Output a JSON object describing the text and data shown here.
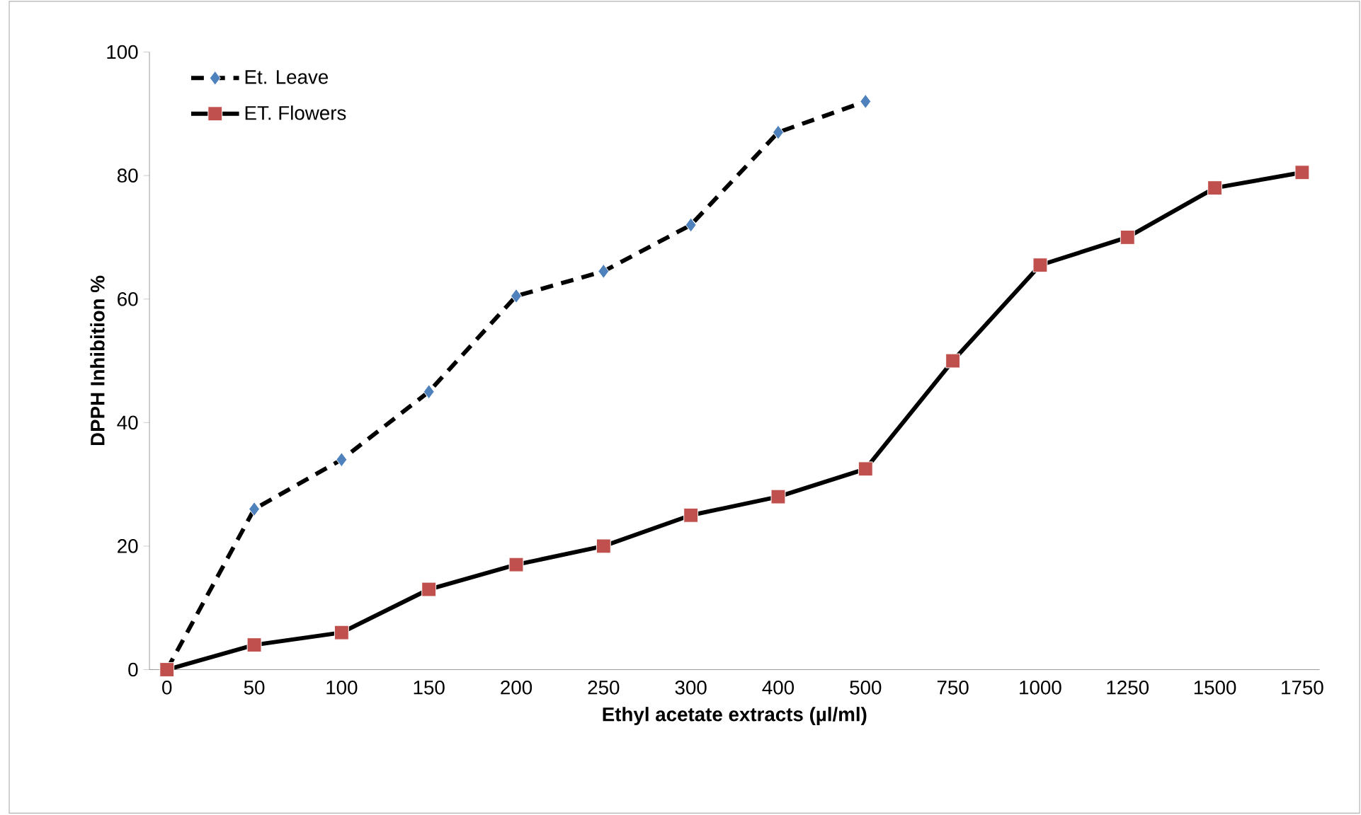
{
  "chart_data": {
    "type": "line",
    "xlabel": "Ethyl acetate extracts (µl/ml)",
    "ylabel": "DPPH Inhibition %",
    "categories": [
      "0",
      "50",
      "100",
      "150",
      "200",
      "250",
      "300",
      "400",
      "500",
      "750",
      "1000",
      "1250",
      "1500",
      "1750"
    ],
    "series": [
      {
        "name": "Et. Leave",
        "color": "#4f81bd",
        "marker": "diamond",
        "line_style": "dashed",
        "values": [
          0,
          26,
          34,
          45,
          60.5,
          64.5,
          72,
          87,
          92,
          null,
          null,
          null,
          null,
          null
        ]
      },
      {
        "name": "ET. Flowers",
        "color": "#c0504d",
        "marker": "square",
        "line_style": "solid",
        "values": [
          0,
          4,
          6,
          13,
          17,
          20,
          25,
          28,
          32.5,
          50,
          65.5,
          70,
          78,
          80.5
        ]
      }
    ],
    "ylim": [
      0,
      100
    ],
    "yticks": [
      0,
      20,
      40,
      60,
      80,
      100
    ],
    "legend": "top left"
  }
}
